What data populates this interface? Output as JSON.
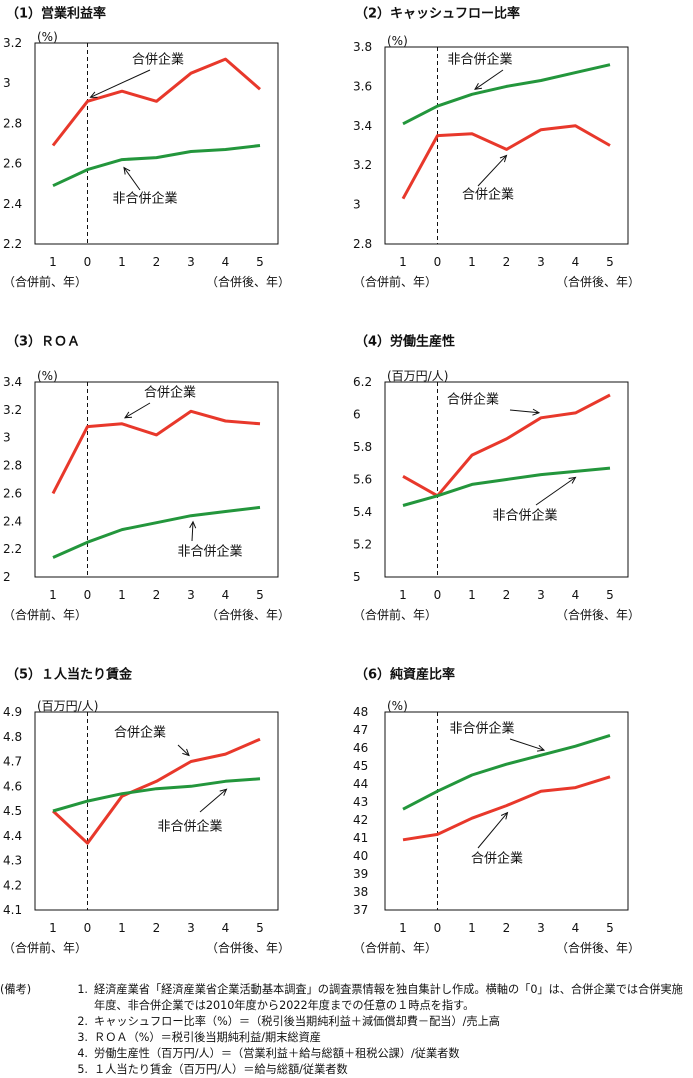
{
  "chart_data": [
    {
      "type": "line",
      "title": "（1）営業利益率",
      "unit_label": "(%)",
      "ylim": [
        2.2,
        3.2
      ],
      "y_ticks": [
        "2.2",
        "2.4",
        "2.6",
        "2.8",
        "3",
        "3.2"
      ],
      "y_tick_values": [
        2.2,
        2.4,
        2.6,
        2.8,
        3.0,
        3.2
      ],
      "categories": [
        "1",
        "0",
        "1",
        "2",
        "3",
        "4",
        "5"
      ],
      "xlabel_left": "（合併前、年）",
      "xlabel_right": "（合併後、年）",
      "series": [
        {
          "name": "合併企業",
          "color": "#e8382b",
          "values": [
            2.69,
            2.91,
            2.96,
            2.91,
            3.05,
            3.12,
            2.97
          ]
        },
        {
          "name": "非合併企業",
          "color": "#23963c",
          "values": [
            2.49,
            2.57,
            2.62,
            2.63,
            2.66,
            2.67,
            2.69
          ]
        }
      ]
    },
    {
      "type": "line",
      "title": "（2）キャッシュフロー比率",
      "unit_label": "(%)",
      "ylim": [
        2.8,
        3.8
      ],
      "y_ticks": [
        "2.8",
        "3",
        "3.2",
        "3.4",
        "3.6",
        "3.8"
      ],
      "y_tick_values": [
        2.8,
        3.0,
        3.2,
        3.4,
        3.6,
        3.8
      ],
      "categories": [
        "1",
        "0",
        "1",
        "2",
        "3",
        "4",
        "5"
      ],
      "xlabel_left": "（合併前、年）",
      "xlabel_right": "（合併後、年）",
      "series": [
        {
          "name": "合併企業",
          "color": "#e8382b",
          "values": [
            3.03,
            3.35,
            3.36,
            3.28,
            3.38,
            3.4,
            3.3
          ]
        },
        {
          "name": "非合併企業",
          "color": "#23963c",
          "values": [
            3.41,
            3.5,
            3.56,
            3.6,
            3.63,
            3.67,
            3.71
          ]
        }
      ]
    },
    {
      "type": "line",
      "title": "（3）ＲＯＡ",
      "unit_label": "(%)",
      "ylim": [
        2.0,
        3.4
      ],
      "y_ticks": [
        "2",
        "2.2",
        "2.4",
        "2.6",
        "2.8",
        "3",
        "3.2",
        "3.4"
      ],
      "y_tick_values": [
        2.0,
        2.2,
        2.4,
        2.6,
        2.8,
        3.0,
        3.2,
        3.4
      ],
      "categories": [
        "1",
        "0",
        "1",
        "2",
        "3",
        "4",
        "5"
      ],
      "xlabel_left": "（合併前、年）",
      "xlabel_right": "（合併後、年）",
      "series": [
        {
          "name": "合併企業",
          "color": "#e8382b",
          "values": [
            2.6,
            3.08,
            3.1,
            3.02,
            3.19,
            3.12,
            3.1
          ]
        },
        {
          "name": "非合併企業",
          "color": "#23963c",
          "values": [
            2.14,
            2.25,
            2.34,
            2.39,
            2.44,
            2.47,
            2.5
          ]
        }
      ]
    },
    {
      "type": "line",
      "title": "（4）労働生産性",
      "unit_label": "(百万円/人)",
      "ylim": [
        5.0,
        6.2
      ],
      "y_ticks": [
        "5",
        "5.2",
        "5.4",
        "5.6",
        "5.8",
        "6",
        "6.2"
      ],
      "y_tick_values": [
        5.0,
        5.2,
        5.4,
        5.6,
        5.8,
        6.0,
        6.2
      ],
      "categories": [
        "1",
        "0",
        "1",
        "2",
        "3",
        "4",
        "5"
      ],
      "xlabel_left": "（合併前、年）",
      "xlabel_right": "（合併後、年）",
      "series": [
        {
          "name": "合併企業",
          "color": "#e8382b",
          "values": [
            5.62,
            5.5,
            5.75,
            5.85,
            5.98,
            6.01,
            6.12
          ]
        },
        {
          "name": "非合併企業",
          "color": "#23963c",
          "values": [
            5.44,
            5.5,
            5.57,
            5.6,
            5.63,
            5.65,
            5.67
          ]
        }
      ]
    },
    {
      "type": "line",
      "title": "（5）１人当たり賃金",
      "unit_label": "(百万円/人)",
      "ylim": [
        4.1,
        4.9
      ],
      "y_ticks": [
        "4.1",
        "4.2",
        "4.3",
        "4.4",
        "4.5",
        "4.6",
        "4.7",
        "4.8",
        "4.9"
      ],
      "y_tick_values": [
        4.1,
        4.2,
        4.3,
        4.4,
        4.5,
        4.6,
        4.7,
        4.8,
        4.9
      ],
      "categories": [
        "1",
        "0",
        "1",
        "2",
        "3",
        "4",
        "5"
      ],
      "xlabel_left": "（合併前、年）",
      "xlabel_right": "（合併後、年）",
      "series": [
        {
          "name": "合併企業",
          "color": "#e8382b",
          "values": [
            4.5,
            4.37,
            4.56,
            4.62,
            4.7,
            4.73,
            4.79
          ]
        },
        {
          "name": "非合併企業",
          "color": "#23963c",
          "values": [
            4.5,
            4.54,
            4.57,
            4.59,
            4.6,
            4.62,
            4.63
          ]
        }
      ]
    },
    {
      "type": "line",
      "title": "（6）純資産比率",
      "unit_label": "(%)",
      "ylim": [
        37,
        48
      ],
      "y_ticks": [
        "37",
        "38",
        "39",
        "40",
        "41",
        "42",
        "43",
        "44",
        "45",
        "46",
        "47",
        "48"
      ],
      "y_tick_values": [
        37,
        38,
        39,
        40,
        41,
        42,
        43,
        44,
        45,
        46,
        47,
        48
      ],
      "categories": [
        "1",
        "0",
        "1",
        "2",
        "3",
        "4",
        "5"
      ],
      "xlabel_left": "（合併前、年）",
      "xlabel_right": "（合併後、年）",
      "series": [
        {
          "name": "合併企業",
          "color": "#e8382b",
          "values": [
            40.9,
            41.2,
            42.1,
            42.8,
            43.6,
            43.8,
            44.4
          ]
        },
        {
          "name": "非合併企業",
          "color": "#23963c",
          "values": [
            42.6,
            43.6,
            44.5,
            45.1,
            45.6,
            46.1,
            46.7
          ]
        }
      ]
    }
  ],
  "notes": {
    "head": "(備考)",
    "items": [
      {
        "num": "1.",
        "text": "経済産業省「経済産業省企業活動基本調査」の調査票情報を独自集計し作成。横軸の「0」は、合併企業では合併実施年度、非合併企業では2010年度から2022年度までの任意の１時点を指す。"
      },
      {
        "num": "2.",
        "text": "キャッシュフロー比率（%）＝（税引後当期純利益＋減価償却費－配当）/売上高"
      },
      {
        "num": "3.",
        "text": "ＲＯＡ（%）＝税引後当期純利益/期末総資産"
      },
      {
        "num": "4.",
        "text": "労働生産性（百万円/人）＝（営業利益＋給与総額＋租税公課）/従業者数"
      },
      {
        "num": "5.",
        "text": "１人当たり賃金（百万円/人）＝給与総額/従業者数"
      }
    ]
  }
}
